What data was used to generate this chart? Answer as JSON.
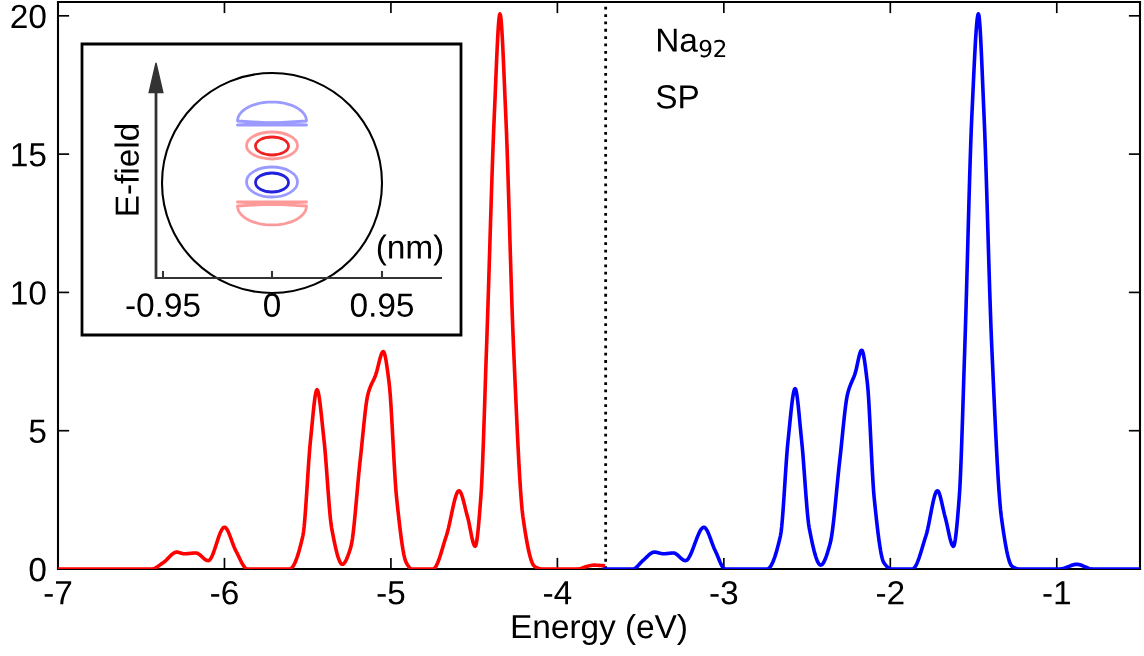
{
  "chart_data": [
    {
      "type": "line",
      "xlabel": "Energy (eV)",
      "xlim": [
        -7,
        -0.5
      ],
      "ylim": [
        0,
        20.5
      ],
      "xticks": [
        -7,
        -6,
        -5,
        -4,
        -3,
        -2,
        -1
      ],
      "yticks": [
        0,
        5,
        10,
        15,
        20
      ],
      "grid": false,
      "legend": false,
      "marker": "none",
      "line_style": "solid",
      "series": [
        {
          "color": "#ff0000",
          "x": [
            -6.99,
            -6.437,
            -6.368,
            -6.287,
            -6.241,
            -6.172,
            -6.097,
            -6.0,
            -5.931,
            -5.862,
            -5.609,
            -5.529,
            -5.483,
            -5.444,
            -5.402,
            -5.356,
            -5.292,
            -5.241,
            -5.184,
            -5.138,
            -5.092,
            -5.046,
            -5.011,
            -4.966,
            -4.908,
            -4.874,
            -4.747,
            -4.667,
            -4.591,
            -4.54,
            -4.494,
            -4.46,
            -4.425,
            -4.379,
            -4.345,
            -4.31,
            -4.264,
            -4.207,
            -4.138,
            -4.092,
            -3.885,
            -3.782,
            -3.724
          ],
          "values": [
            0,
            0,
            0.23,
            0.61,
            0.55,
            0.58,
            0.3,
            1.51,
            0.65,
            0,
            0,
            1.2,
            4.66,
            6.48,
            4.66,
            1.48,
            0.17,
            0.79,
            3.97,
            6.32,
            7.01,
            7.86,
            6.73,
            2.58,
            0.23,
            0,
            0,
            1.2,
            2.83,
            1.89,
            0.82,
            2.58,
            8.11,
            16.4,
            20.07,
            16.4,
            8.11,
            1.89,
            0.1,
            0,
            0,
            0.14,
            0.12
          ]
        },
        {
          "color": "#0000ff",
          "x": [
            -3.717,
            -3.545,
            -3.487,
            -3.418,
            -3.361,
            -3.303,
            -3.23,
            -3.12,
            -3.051,
            -2.993,
            -2.74,
            -2.66,
            -2.614,
            -2.572,
            -2.533,
            -2.487,
            -2.418,
            -2.361,
            -2.303,
            -2.257,
            -2.211,
            -2.172,
            -2.138,
            -2.097,
            -2.039,
            -1.993,
            -1.867,
            -1.786,
            -1.717,
            -1.671,
            -1.621,
            -1.586,
            -1.552,
            -1.51,
            -1.471,
            -1.437,
            -1.391,
            -1.333,
            -1.269,
            -1.223,
            -0.982,
            -0.879,
            -0.786,
            -0.5
          ],
          "values": [
            0,
            0,
            0.3,
            0.61,
            0.55,
            0.58,
            0.3,
            1.51,
            0.65,
            0,
            0,
            1.2,
            4.66,
            6.52,
            4.66,
            1.48,
            0.14,
            0.93,
            3.97,
            6.32,
            7.08,
            7.91,
            6.73,
            2.58,
            0.23,
            0,
            0,
            1.2,
            2.83,
            1.89,
            0.82,
            2.58,
            8.11,
            16.4,
            20.07,
            16.4,
            8.11,
            1.89,
            0.1,
            0,
            0,
            0.17,
            0,
            0
          ]
        }
      ],
      "ref_lines": [
        {
          "axis": "x",
          "value": -3.71,
          "color": "#000000",
          "line_style": "dotted"
        }
      ],
      "annotations": [
        "Na$_{92}$",
        "SP"
      ]
    },
    {
      "type": "other",
      "xlabel": "(nm)",
      "ylabel": "E-field",
      "annotations": [
        "-0.95",
        "0",
        "0.95"
      ]
    }
  ]
}
